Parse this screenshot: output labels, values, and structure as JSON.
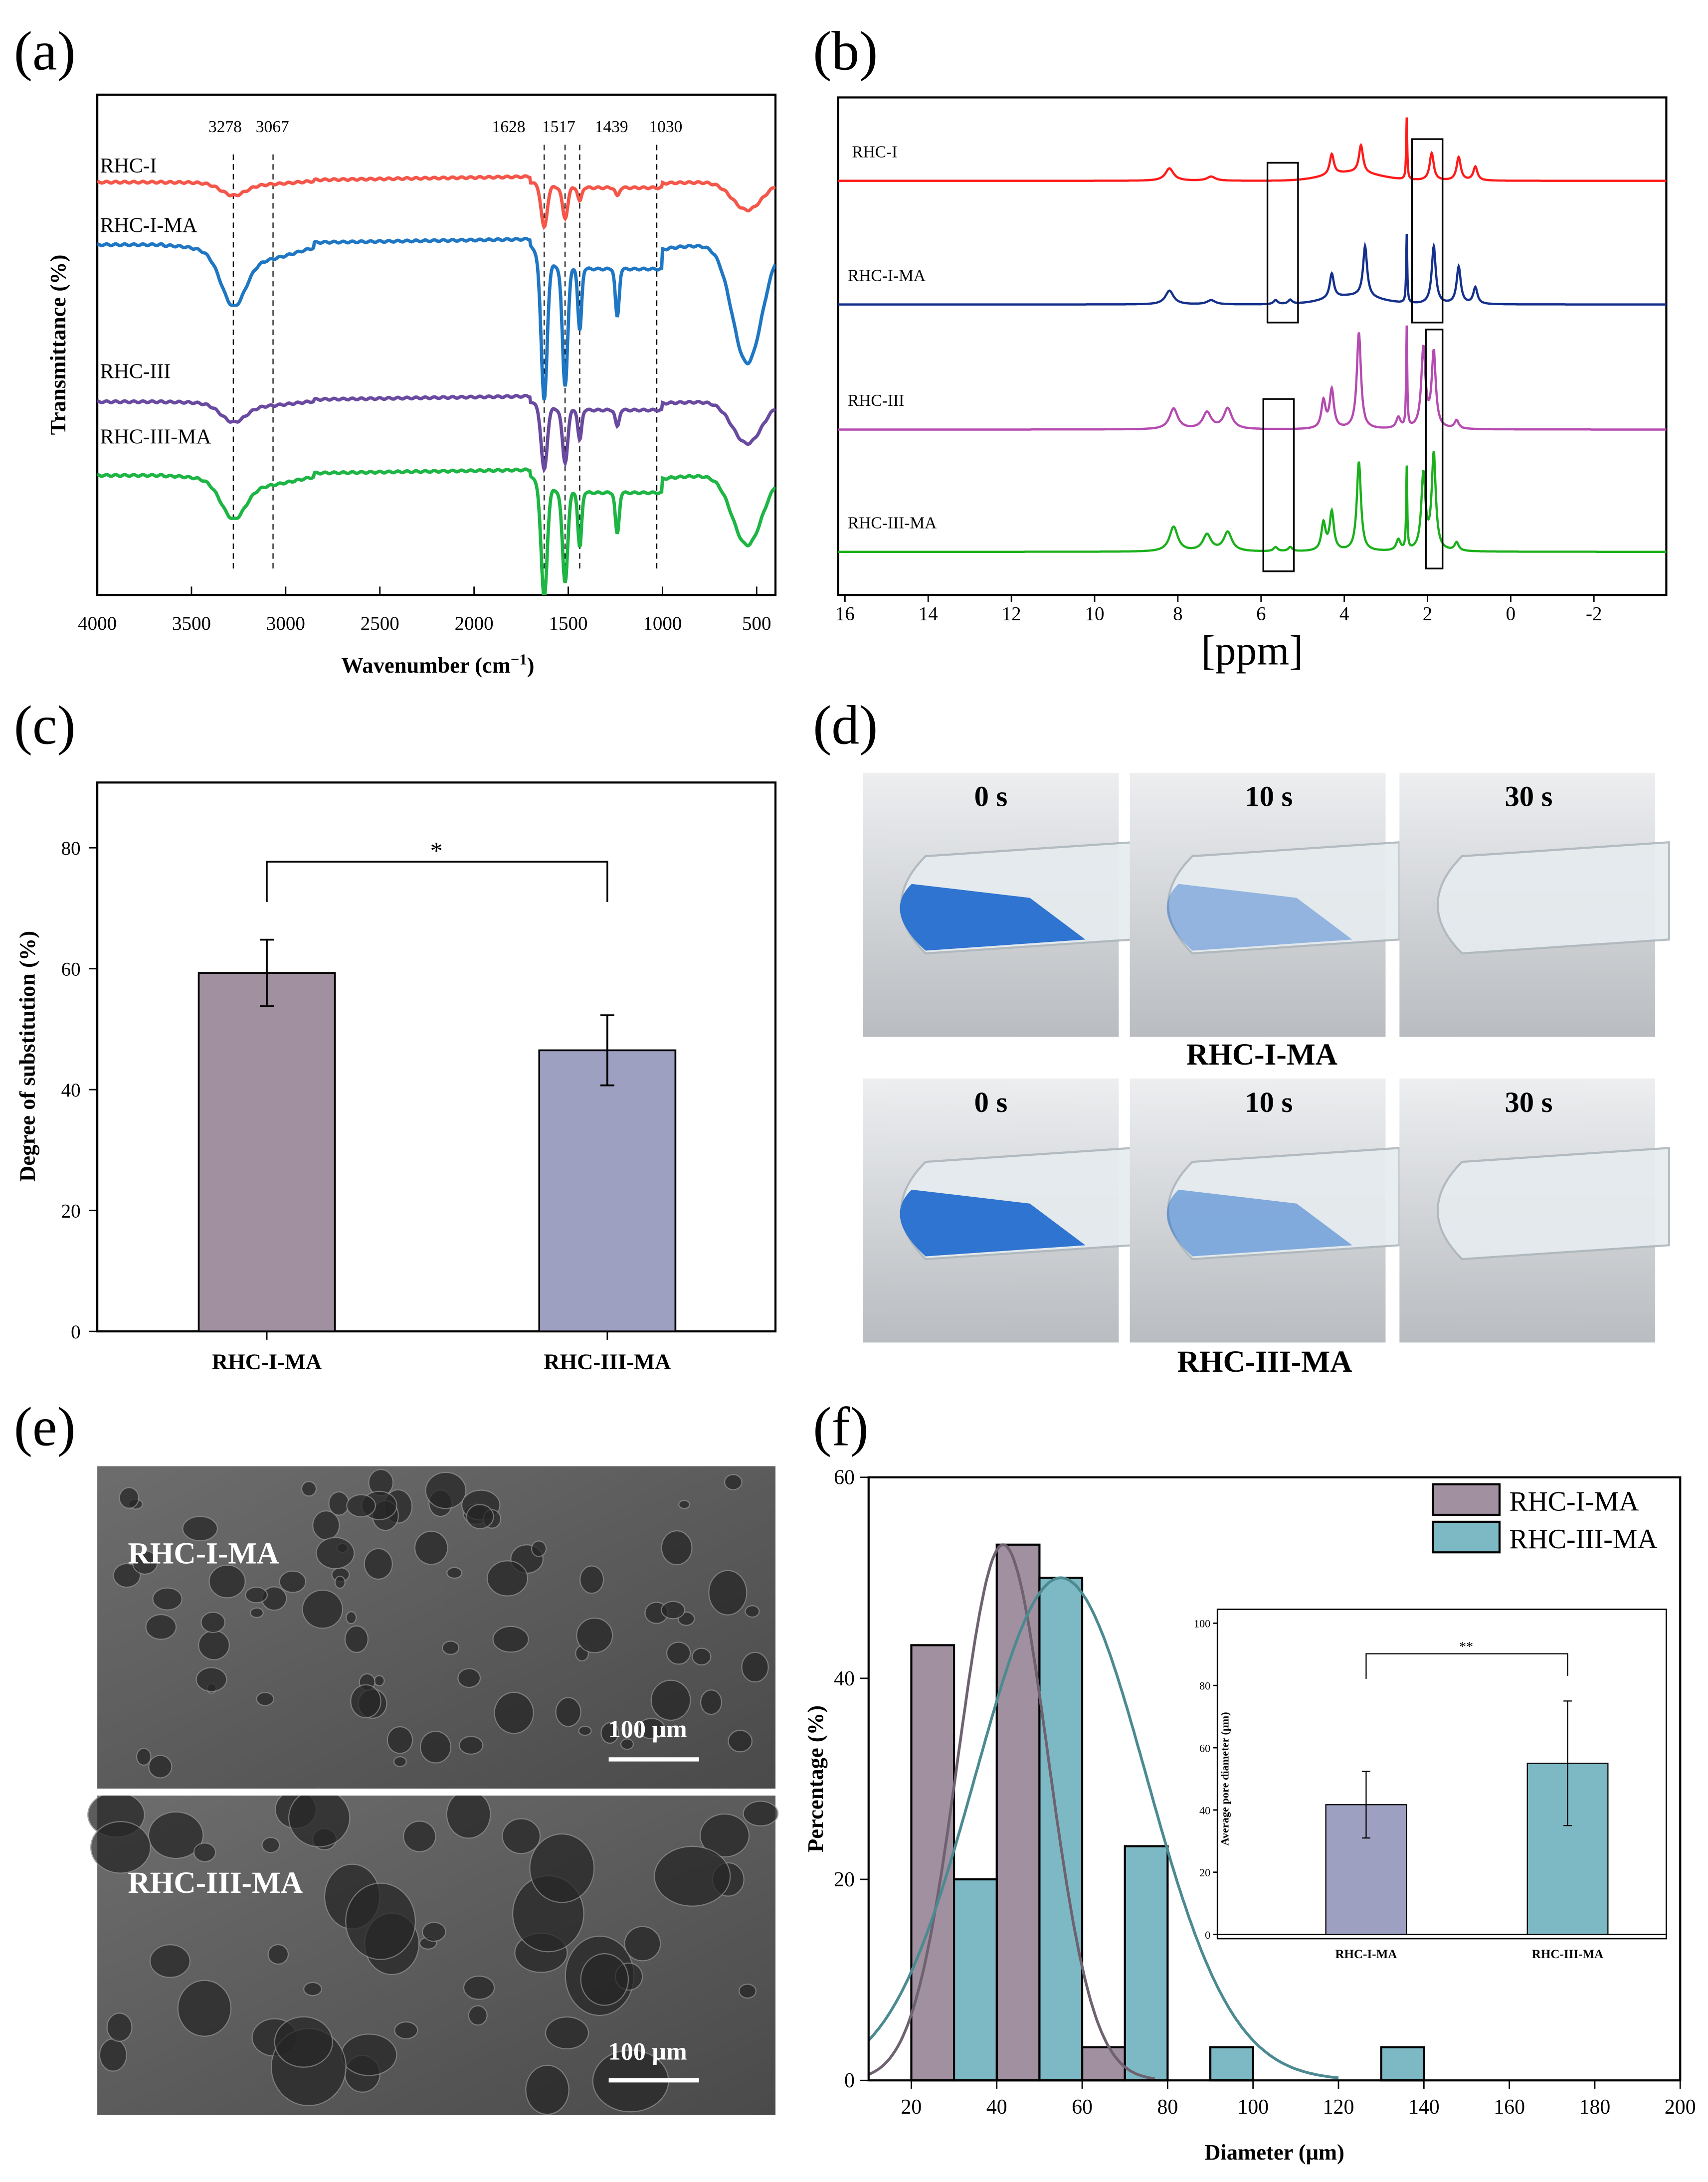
{
  "panels": {
    "a": "(a)",
    "b": "(b)",
    "c": "(c)",
    "d": "(d)",
    "e": "(e)",
    "f": "(f)"
  },
  "chart_data": [
    {
      "id": "a",
      "type": "line",
      "title": "",
      "xlabel": "Wavenumber (cm",
      "xlabel_sup": "−1",
      "xlabel_end": ")",
      "ylabel": "Transmittance (%)",
      "xlim": [
        4000,
        400
      ],
      "xticks": [
        "4000",
        "3500",
        "3000",
        "2500",
        "2000",
        "1500",
        "1000",
        "500"
      ],
      "xtick_values": [
        4000,
        3500,
        3000,
        2500,
        2000,
        1500,
        1000,
        500
      ],
      "reference_lines": [
        "3278",
        "3067",
        "1628",
        "1517",
        "1439",
        "1030"
      ],
      "reference_values": [
        3278,
        3067,
        1628,
        1517,
        1439,
        1030
      ],
      "series": [
        {
          "name": "RHC-I",
          "color": "#f4574a",
          "bands": [
            [
              3278,
              8
            ],
            [
              1628,
              30
            ],
            [
              1517,
              22
            ],
            [
              1439,
              10
            ],
            [
              1240,
              6
            ],
            [
              550,
              20
            ]
          ]
        },
        {
          "name": "RHC-I-MA",
          "color": "#1f77c4",
          "bands": [
            [
              3278,
              35
            ],
            [
              1628,
              100
            ],
            [
              1517,
              85
            ],
            [
              1439,
              45
            ],
            [
              1240,
              35
            ],
            [
              550,
              85
            ]
          ]
        },
        {
          "name": "RHC-III",
          "color": "#6a4aa0",
          "bands": [
            [
              3278,
              12
            ],
            [
              1628,
              45
            ],
            [
              1517,
              38
            ],
            [
              1439,
              22
            ],
            [
              1240,
              12
            ],
            [
              550,
              30
            ]
          ]
        },
        {
          "name": "RHC-III-MA",
          "color": "#1db543",
          "bands": [
            [
              3278,
              25
            ],
            [
              1628,
              80
            ],
            [
              1517,
              65
            ],
            [
              1439,
              40
            ],
            [
              1240,
              30
            ],
            [
              550,
              50
            ]
          ]
        }
      ]
    },
    {
      "id": "b",
      "type": "line",
      "xlabel": "[ppm]",
      "xlim": [
        16,
        -3.7
      ],
      "xticks": [
        "16",
        "14",
        "12",
        "10",
        "8",
        "6",
        "4",
        "2",
        "0",
        "-2"
      ],
      "xtick_values": [
        16,
        14,
        12,
        10,
        8,
        6,
        4,
        2,
        0,
        -2
      ],
      "series": [
        {
          "name": "RHC-I",
          "color": "#ff1a1a",
          "peaks": [
            [
              8.2,
              9
            ],
            [
              7.2,
              3
            ],
            [
              4.3,
              15
            ],
            [
              3.6,
              20
            ],
            [
              2.5,
              45
            ],
            [
              1.9,
              20
            ],
            [
              1.25,
              17
            ],
            [
              0.85,
              10
            ]
          ]
        },
        {
          "name": "RHC-I-MA",
          "color": "#14308c",
          "peaks": [
            [
              8.2,
              10
            ],
            [
              7.2,
              3
            ],
            [
              5.65,
              3
            ],
            [
              5.3,
              3
            ],
            [
              4.3,
              18
            ],
            [
              3.5,
              37
            ],
            [
              2.5,
              50
            ],
            [
              1.85,
              42
            ],
            [
              1.25,
              27
            ],
            [
              0.85,
              12
            ]
          ]
        },
        {
          "name": "RHC-III",
          "color": "#b54ab0",
          "peaks": [
            [
              8.1,
              15
            ],
            [
              7.3,
              12
            ],
            [
              6.8,
              15
            ],
            [
              4.5,
              20
            ],
            [
              4.3,
              28
            ],
            [
              3.65,
              70
            ],
            [
              2.7,
              8
            ],
            [
              2.5,
              73
            ],
            [
              2.1,
              58
            ],
            [
              1.85,
              55
            ],
            [
              1.3,
              6
            ]
          ]
        },
        {
          "name": "RHC-III-MA",
          "color": "#1bb01b",
          "peaks": [
            [
              8.1,
              18
            ],
            [
              7.3,
              12
            ],
            [
              6.8,
              14
            ],
            [
              5.65,
              3
            ],
            [
              5.3,
              3
            ],
            [
              4.5,
              20
            ],
            [
              4.3,
              28
            ],
            [
              3.65,
              65
            ],
            [
              2.7,
              8
            ],
            [
              2.5,
              60
            ],
            [
              2.1,
              55
            ],
            [
              1.85,
              70
            ],
            [
              1.3,
              6
            ]
          ]
        }
      ]
    },
    {
      "id": "c",
      "type": "bar",
      "ylabel": "Degree of substitution (%)",
      "xlabel": "",
      "categories": [
        "RHC-I-MA",
        "RHC-III-MA"
      ],
      "values": [
        59.3,
        46.5
      ],
      "errors": [
        5.5,
        5.8
      ],
      "colors": [
        "#a1909f",
        "#9da0c0"
      ],
      "ylim": [
        0,
        90.8
      ],
      "yticks": [
        "0",
        "20",
        "40",
        "60",
        "80"
      ],
      "ytick_values": [
        0,
        20,
        40,
        60,
        80
      ],
      "significance": "*"
    },
    {
      "id": "f",
      "type": "bar",
      "xlabel": "Diameter (μm)",
      "ylabel": "Percentage (%)",
      "xlim": [
        10,
        200
      ],
      "ylim": [
        0,
        60
      ],
      "xticks": [
        "20",
        "40",
        "60",
        "80",
        "100",
        "120",
        "140",
        "160",
        "180",
        "200"
      ],
      "xtick_values": [
        20,
        40,
        60,
        80,
        100,
        120,
        140,
        160,
        180,
        200
      ],
      "yticks": [
        "0",
        "20",
        "40",
        "60"
      ],
      "ytick_values": [
        0,
        20,
        40,
        60
      ],
      "legend_position": "top-right",
      "series": [
        {
          "name": "RHC-I-MA",
          "color": "#a1909f",
          "curve_color": "#6e6270",
          "bins": [
            [
              20,
              30,
              43.3
            ],
            [
              40,
              50,
              53.3
            ],
            [
              60,
              70,
              3.3
            ]
          ],
          "fit": {
            "mean": 41.5,
            "sd": 10.5,
            "peak": 53.3,
            "range": [
              10,
              77
            ]
          }
        },
        {
          "name": "RHC-III-MA",
          "color": "#7db9c4",
          "curve_color": "#4b8a91",
          "bins": [
            [
              30,
              40,
              20
            ],
            [
              50,
              60,
              50
            ],
            [
              70,
              80,
              23.3
            ],
            [
              90,
              100,
              3.3
            ],
            [
              130,
              140,
              3.3
            ]
          ],
          "fit": {
            "mean": 55,
            "sd": 20,
            "peak": 50,
            "range": [
              10,
              120
            ]
          }
        }
      ],
      "inset": {
        "type": "bar",
        "ylabel": "Average pore diameter (μm)",
        "categories": [
          "RHC-I-MA",
          "RHC-III-MA"
        ],
        "values": [
          41.7,
          55
        ],
        "errors": [
          10.7,
          20
        ],
        "colors": [
          "#9da0c0",
          "#7db9c4"
        ],
        "ylim": [
          0,
          105
        ],
        "yticks": [
          "0",
          "20",
          "40",
          "60",
          "80",
          "100"
        ],
        "ytick_values": [
          0,
          20,
          40,
          60,
          80,
          100
        ],
        "significance": "**"
      }
    }
  ],
  "photos": {
    "times": [
      "0 s",
      "10 s",
      "30 s"
    ],
    "rows": [
      "RHC-I-MA",
      "RHC-III-MA"
    ],
    "liquid_color": "#2f74d0"
  },
  "sem": {
    "images": [
      {
        "label": "RHC-I-MA",
        "scale": "100 μm"
      },
      {
        "label": "RHC-III-MA",
        "scale": "100 μm"
      }
    ]
  }
}
